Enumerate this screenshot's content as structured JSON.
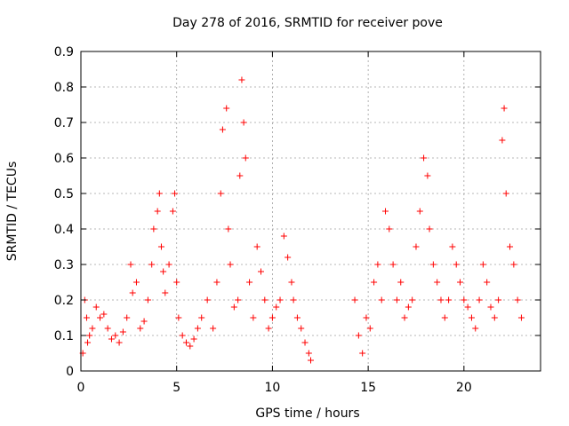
{
  "chart_data": {
    "type": "scatter",
    "title": "Day 278 of 2016, SRMTID for receiver pove",
    "xlabel": "GPS time / hours",
    "ylabel": "SRMTID / TECUs",
    "xlim": [
      0,
      24
    ],
    "ylim": [
      0,
      0.9
    ],
    "xticks": [
      "0",
      "5",
      "10",
      "15",
      "20"
    ],
    "yticks": [
      "0",
      "0.1",
      "0.2",
      "0.3",
      "0.4",
      "0.5",
      "0.6",
      "0.7",
      "0.8",
      "0.9"
    ],
    "grid": true,
    "marker": "+",
    "color": "#ff0000",
    "series": [
      {
        "name": "SRMTID",
        "x": [
          0.1,
          0.2,
          0.3,
          0.35,
          0.45,
          0.6,
          0.8,
          1.0,
          1.2,
          1.4,
          1.6,
          1.8,
          2.0,
          2.2,
          2.4,
          2.6,
          2.7,
          2.9,
          3.1,
          3.3,
          3.5,
          3.7,
          3.8,
          4.0,
          4.1,
          4.2,
          4.3,
          4.4,
          4.6,
          4.8,
          4.9,
          5.0,
          5.1,
          5.3,
          5.5,
          5.7,
          5.9,
          6.1,
          6.3,
          6.6,
          6.9,
          7.1,
          7.3,
          7.4,
          7.6,
          7.7,
          7.8,
          8.0,
          8.2,
          8.3,
          8.4,
          8.5,
          8.6,
          8.8,
          9.0,
          9.2,
          9.4,
          9.6,
          9.8,
          10.0,
          10.2,
          10.4,
          10.6,
          10.8,
          11.0,
          11.1,
          11.3,
          11.5,
          11.7,
          11.9,
          12.0,
          14.3,
          14.5,
          14.7,
          14.9,
          15.1,
          15.3,
          15.5,
          15.7,
          15.9,
          16.1,
          16.3,
          16.5,
          16.7,
          16.9,
          17.1,
          17.3,
          17.5,
          17.7,
          17.9,
          18.1,
          18.2,
          18.4,
          18.6,
          18.8,
          19.0,
          19.2,
          19.4,
          19.6,
          19.8,
          20.0,
          20.2,
          20.4,
          20.6,
          20.8,
          21.0,
          21.2,
          21.4,
          21.6,
          21.8,
          22.0,
          22.1,
          22.2,
          22.4,
          22.6,
          22.8,
          23.0
        ],
        "y": [
          0.05,
          0.2,
          0.15,
          0.08,
          0.1,
          0.12,
          0.18,
          0.15,
          0.16,
          0.12,
          0.09,
          0.1,
          0.08,
          0.11,
          0.15,
          0.3,
          0.22,
          0.25,
          0.12,
          0.14,
          0.2,
          0.3,
          0.4,
          0.45,
          0.5,
          0.35,
          0.28,
          0.22,
          0.3,
          0.45,
          0.5,
          0.25,
          0.15,
          0.1,
          0.08,
          0.07,
          0.09,
          0.12,
          0.15,
          0.2,
          0.12,
          0.25,
          0.5,
          0.68,
          0.74,
          0.4,
          0.3,
          0.18,
          0.2,
          0.55,
          0.82,
          0.7,
          0.6,
          0.25,
          0.15,
          0.35,
          0.28,
          0.2,
          0.12,
          0.15,
          0.18,
          0.2,
          0.38,
          0.32,
          0.25,
          0.2,
          0.15,
          0.12,
          0.08,
          0.05,
          0.03,
          0.2,
          0.1,
          0.05,
          0.15,
          0.12,
          0.25,
          0.3,
          0.2,
          0.45,
          0.4,
          0.3,
          0.2,
          0.25,
          0.15,
          0.18,
          0.2,
          0.35,
          0.45,
          0.6,
          0.55,
          0.4,
          0.3,
          0.25,
          0.2,
          0.15,
          0.2,
          0.35,
          0.3,
          0.25,
          0.2,
          0.18,
          0.15,
          0.12,
          0.2,
          0.3,
          0.25,
          0.18,
          0.15,
          0.2,
          0.65,
          0.74,
          0.5,
          0.35,
          0.3,
          0.2,
          0.15
        ]
      }
    ]
  }
}
